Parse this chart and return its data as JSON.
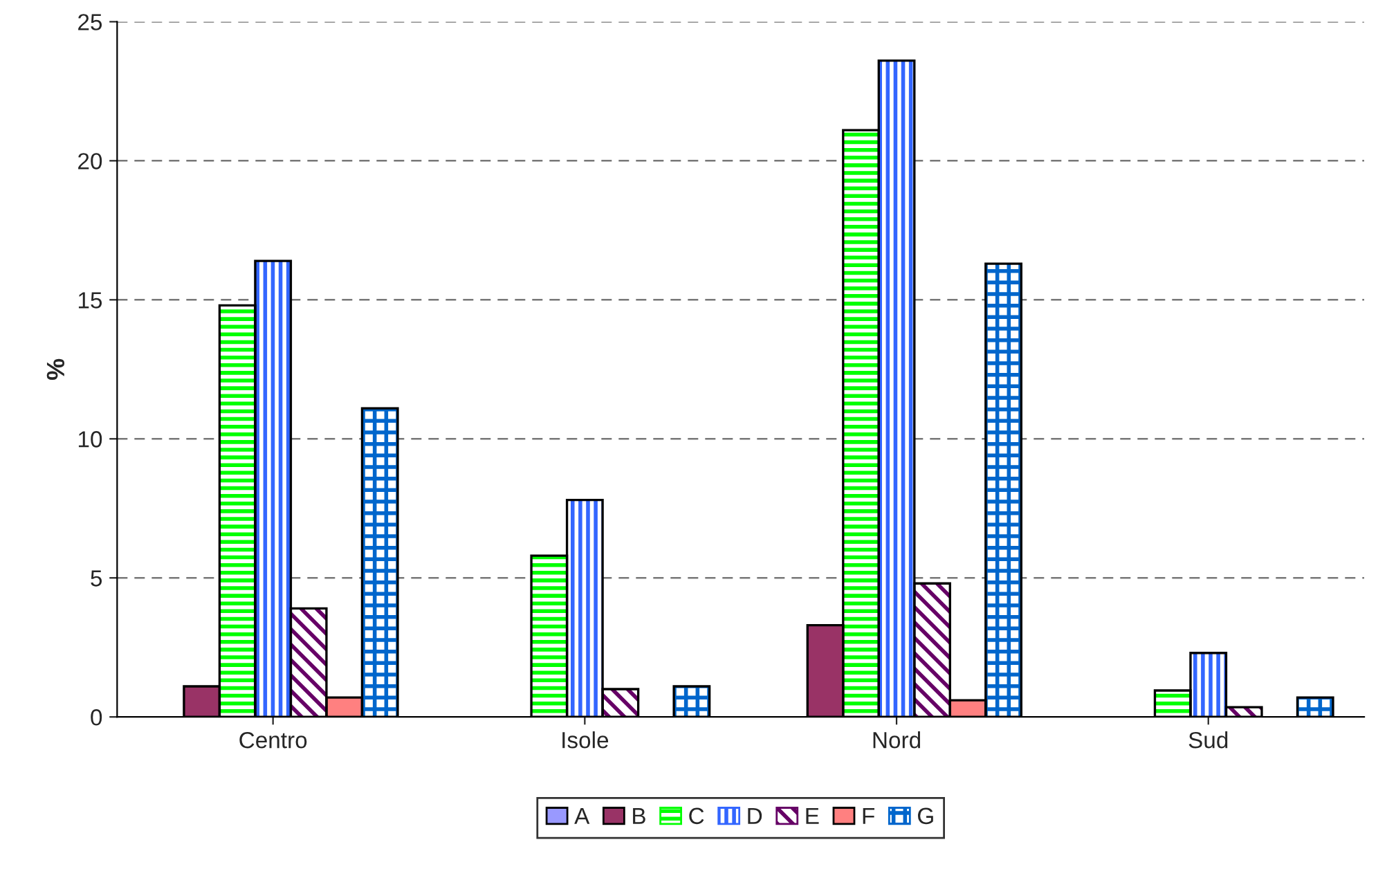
{
  "chart_data": {
    "type": "bar",
    "ylabel": "%",
    "categories": [
      "Centro",
      "Isole",
      "Nord",
      "Sud"
    ],
    "series": [
      {
        "name": "A",
        "color": "#9999ff",
        "values": [
          0,
          0,
          0,
          0
        ]
      },
      {
        "name": "B",
        "color": "#993366",
        "values": [
          1.1,
          0,
          3.3,
          0
        ]
      },
      {
        "name": "C",
        "color": "#00ff00",
        "values": [
          14.8,
          5.8,
          21.1,
          0.95
        ]
      },
      {
        "name": "D",
        "color": "#3366ff",
        "values": [
          16.4,
          7.8,
          23.6,
          2.3
        ]
      },
      {
        "name": "E",
        "color": "#660066",
        "values": [
          3.9,
          1.0,
          4.8,
          0.35
        ]
      },
      {
        "name": "F",
        "color": "#ff8080",
        "values": [
          0.7,
          0,
          0.6,
          0
        ]
      },
      {
        "name": "G",
        "color": "#0066cc",
        "values": [
          11.1,
          1.1,
          16.3,
          0.7
        ]
      }
    ],
    "ylim": [
      0,
      25
    ],
    "yticks": [
      0,
      5,
      10,
      15,
      20,
      25
    ],
    "grid": "y",
    "legend": "bottom"
  }
}
